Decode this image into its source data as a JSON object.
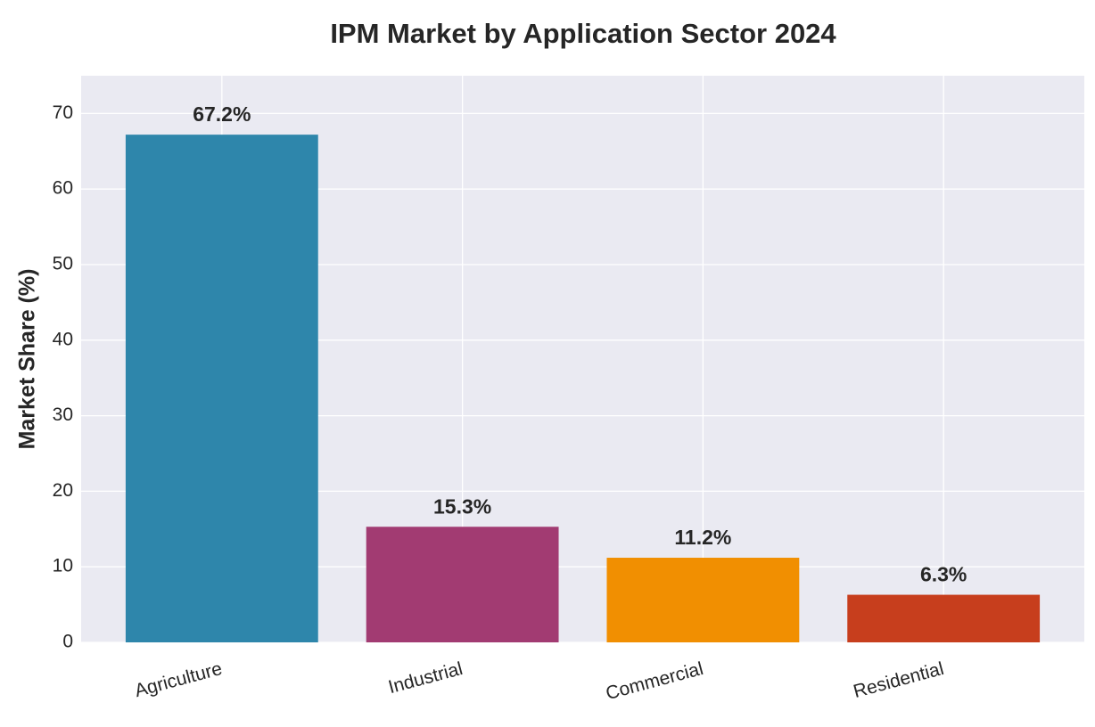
{
  "chart_data": {
    "type": "bar",
    "title": "IPM Market by Application Sector 2024",
    "y_label": "Market Share (%)",
    "categories": [
      "Agriculture",
      "Industrial",
      "Commercial",
      "Residential"
    ],
    "values": [
      67.2,
      15.3,
      11.2,
      6.3
    ],
    "value_labels": [
      "67.2%",
      "15.3%",
      "11.2%",
      "6.3%"
    ],
    "colors": [
      "#2E86AB",
      "#A23B72",
      "#F18F01",
      "#C73E1D"
    ],
    "ylim": [
      0,
      75
    ],
    "yticks": [
      0,
      10,
      20,
      30,
      40,
      50,
      60,
      70
    ],
    "grid": true
  }
}
